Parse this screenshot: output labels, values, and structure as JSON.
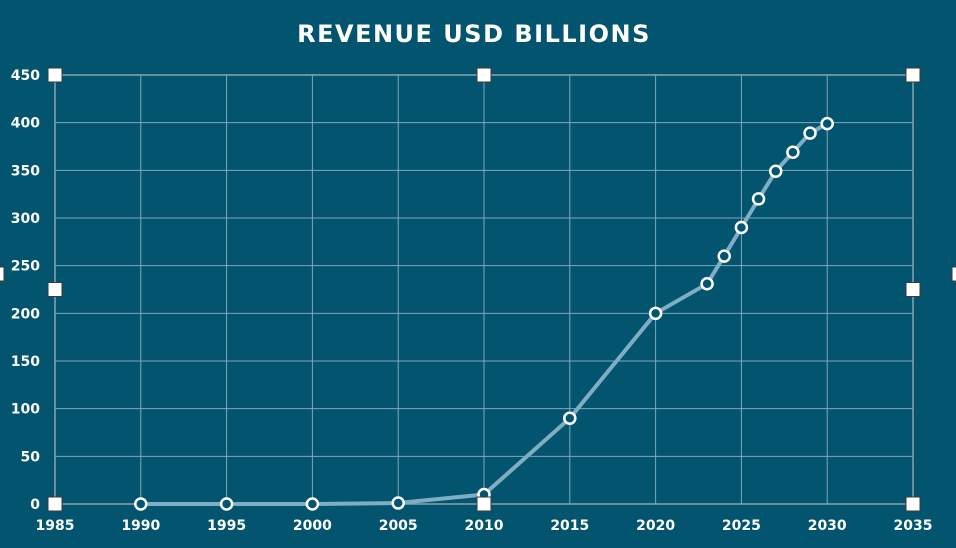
{
  "chart_data": {
    "type": "line",
    "title": "REVENUE USD BILLIONS",
    "xlabel": "",
    "ylabel": "",
    "xlim": [
      1985,
      2035
    ],
    "ylim": [
      0,
      450
    ],
    "x_ticks": [
      1985,
      1990,
      1995,
      2000,
      2005,
      2010,
      2015,
      2020,
      2025,
      2030,
      2035
    ],
    "y_ticks": [
      0,
      50,
      100,
      150,
      200,
      250,
      300,
      350,
      400,
      450
    ],
    "grid": true,
    "legend": "none",
    "series": [
      {
        "x": [
          1990,
          1995,
          2000,
          2005,
          2010,
          2015,
          2020,
          2023,
          2024,
          2025,
          2026,
          2027,
          2028,
          2029,
          2030
        ],
        "y": [
          0,
          0,
          0,
          1,
          10,
          90,
          200,
          231,
          260,
          290,
          320,
          349,
          369,
          389,
          399
        ]
      }
    ],
    "colors": {
      "background": "#03546f",
      "line": "#7faec4",
      "marker_stroke": "#ffffff",
      "grid": "#7fa9bb",
      "text": "#ffffff"
    }
  }
}
